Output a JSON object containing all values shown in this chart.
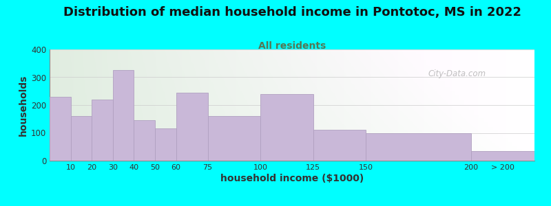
{
  "title": "Distribution of median household income in Pontotoc, MS in 2022",
  "subtitle": "All residents",
  "xlabel": "household income ($1000)",
  "ylabel": "households",
  "background_color": "#00FFFF",
  "bar_color": "#C9B8D8",
  "bar_edge_color": "#B0A0C0",
  "watermark": "City-Data.com",
  "title_fontsize": 13,
  "subtitle_fontsize": 10,
  "axis_label_fontsize": 10,
  "ylim": [
    0,
    400
  ],
  "yticks": [
    0,
    100,
    200,
    300,
    400
  ],
  "bin_edges": [
    0,
    10,
    20,
    30,
    40,
    50,
    60,
    75,
    100,
    125,
    150,
    200,
    230
  ],
  "bin_labels": [
    "10",
    "20",
    "30",
    "40",
    "50",
    "60",
    "75",
    "100",
    "125",
    "150",
    "200",
    "> 200"
  ],
  "values": [
    230,
    160,
    220,
    325,
    145,
    115,
    245,
    160,
    240,
    110,
    100,
    35
  ],
  "subtitle_color": "#557755",
  "title_color": "#111111"
}
